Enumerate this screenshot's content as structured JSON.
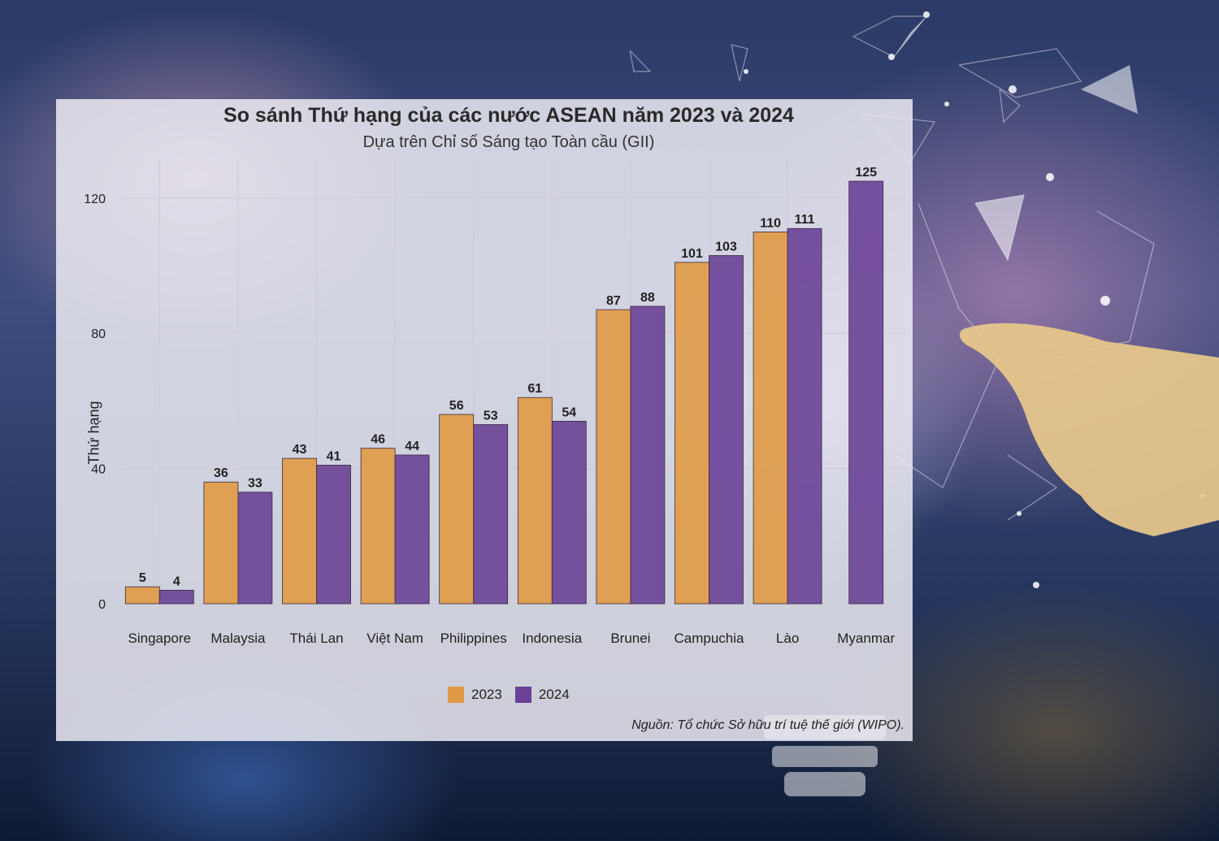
{
  "colors": {
    "y2023": "#e09a45",
    "y2024": "#6a4196",
    "grid": "#cfcbd6",
    "text": "#222222"
  },
  "chart_data": {
    "type": "bar",
    "title": "So sánh Thứ hạng của các nước ASEAN năm 2023 và 2024",
    "subtitle": "Dựa trên Chỉ số Sáng tạo Toàn cầu (GII)",
    "xlabel": "",
    "ylabel": "Thứ hạng",
    "ylim": [
      0,
      130
    ],
    "yticks": [
      0,
      40,
      80,
      120
    ],
    "grid": true,
    "legend_position": "bottom",
    "categories": [
      "Singapore",
      "Malaysia",
      "Thái Lan",
      "Việt Nam",
      "Philippines",
      "Indonesia",
      "Brunei",
      "Campuchia",
      "Lào",
      "Myanmar"
    ],
    "series": [
      {
        "name": "2023",
        "values": [
          5,
          36,
          43,
          46,
          56,
          61,
          87,
          101,
          110,
          null
        ]
      },
      {
        "name": "2024",
        "values": [
          4,
          33,
          41,
          44,
          53,
          54,
          88,
          103,
          111,
          125
        ]
      }
    ],
    "source": "Nguồn: Tổ chức Sở hữu trí tuệ thế giới (WIPO)."
  }
}
